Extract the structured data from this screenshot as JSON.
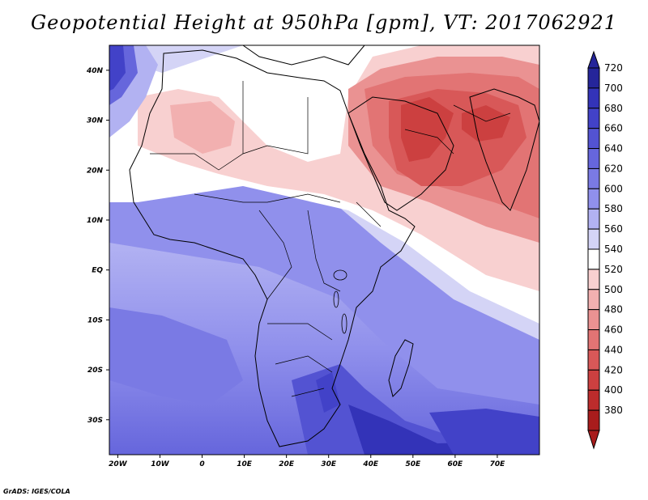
{
  "title": "Geopotential Height at 950hPa [gpm], VT: 2017062921",
  "footer": "GrADS: IGES/COLA",
  "map": {
    "region": "Africa, Middle East and South Asia",
    "field": "geopotential height at 950hPa",
    "units": "gpm",
    "lon_range": [
      -22,
      80
    ],
    "lat_range": [
      -37,
      45
    ],
    "lon_ticks": [
      "20W",
      "10W",
      "0",
      "10E",
      "20E",
      "30E",
      "40E",
      "50E",
      "60E",
      "70E"
    ],
    "lat_ticks": [
      "40N",
      "30N",
      "20N",
      "10N",
      "EQ",
      "10S",
      "20S",
      "30S"
    ]
  },
  "colorbar": {
    "levels": [
      "720",
      "700",
      "680",
      "660",
      "640",
      "620",
      "600",
      "580",
      "560",
      "540",
      "520",
      "500",
      "480",
      "460",
      "440",
      "420",
      "400",
      "380"
    ],
    "colors": [
      "#25259a",
      "#3333b8",
      "#4242c8",
      "#5353d2",
      "#6666dc",
      "#7a7ae4",
      "#9090ec",
      "#b2b2f2",
      "#d4d4f6",
      "#ffffff",
      "#f8d0d0",
      "#f2b0b0",
      "#ea9292",
      "#e27474",
      "#d85858",
      "#cc4040",
      "#bc2c2c",
      "#a81c1c"
    ]
  }
}
